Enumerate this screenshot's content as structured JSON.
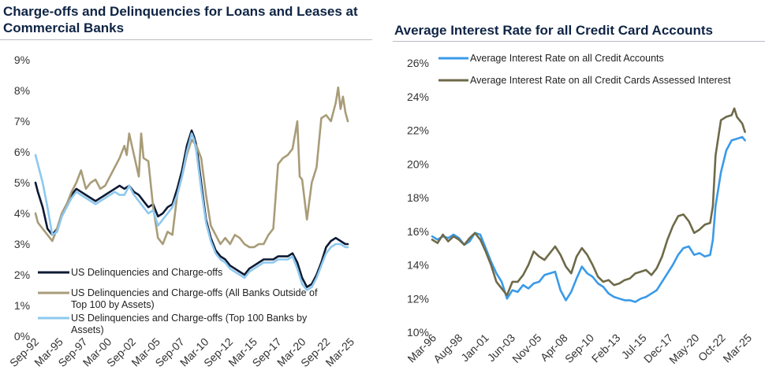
{
  "colors": {
    "title": "#0f2444",
    "black_series": "#0e1a33",
    "olive_series": "#a89c78",
    "lightblue_series": "#8ec8ef",
    "blue_series": "#3a9ae8",
    "darkolive_series": "#6e6a48"
  },
  "chart_data": [
    {
      "type": "line",
      "title_lines": [
        "Charge-offs and Delinquencies for Loans and Leases at",
        "Commercial Banks"
      ],
      "x_ticks": [
        "Sep-92",
        "Mar-95",
        "Sep-97",
        "Mar-00",
        "Sep-02",
        "Mar-05",
        "Sep-07",
        "Mar-10",
        "Sep-12",
        "Mar-15",
        "Sep-17",
        "Mar-20",
        "Sep-22",
        "Mar-25"
      ],
      "x_range": [
        1992.67,
        2025.5
      ],
      "y_ticks": [
        "0%",
        "1%",
        "2%",
        "3%",
        "4%",
        "5%",
        "6%",
        "7%",
        "8%",
        "9%"
      ],
      "ylim": [
        0,
        9
      ],
      "legend_position": "lower-left",
      "series": [
        {
          "name": "US Delinquencies and Charge-offs",
          "legend_lines": [
            "US Delinquencies and Charge-offs"
          ],
          "color": "#0e1a33",
          "x": [
            1992.75,
            1993.0,
            1993.5,
            1994.0,
            1994.5,
            1995.0,
            1995.5,
            1996.0,
            1996.5,
            1997.0,
            1997.5,
            1998.0,
            1998.5,
            1999.0,
            1999.5,
            2000.0,
            2000.5,
            2001.0,
            2001.5,
            2002.0,
            2002.5,
            2003.0,
            2003.5,
            2004.0,
            2004.5,
            2005.0,
            2005.5,
            2006.0,
            2006.5,
            2007.0,
            2007.5,
            2008.0,
            2008.5,
            2009.0,
            2009.25,
            2009.5,
            2010.0,
            2010.5,
            2011.0,
            2011.5,
            2012.0,
            2012.5,
            2013.0,
            2013.5,
            2014.0,
            2014.5,
            2015.0,
            2015.5,
            2016.0,
            2016.5,
            2017.0,
            2017.5,
            2018.0,
            2018.5,
            2019.0,
            2019.5,
            2020.0,
            2020.5,
            2021.0,
            2021.5,
            2022.0,
            2022.5,
            2023.0,
            2023.5,
            2024.0,
            2024.5,
            2025.0,
            2025.25
          ],
          "y": [
            5.0,
            4.7,
            4.2,
            3.5,
            3.3,
            3.5,
            4.0,
            4.3,
            4.6,
            4.8,
            4.7,
            4.6,
            4.5,
            4.4,
            4.5,
            4.6,
            4.7,
            4.8,
            4.9,
            4.8,
            4.9,
            4.7,
            4.6,
            4.4,
            4.2,
            4.3,
            3.9,
            4.0,
            4.2,
            4.3,
            4.8,
            5.4,
            6.2,
            6.7,
            6.5,
            6.2,
            5.0,
            3.8,
            3.2,
            2.8,
            2.6,
            2.5,
            2.3,
            2.2,
            2.1,
            2.0,
            2.2,
            2.3,
            2.4,
            2.5,
            2.5,
            2.5,
            2.6,
            2.6,
            2.6,
            2.7,
            2.4,
            1.9,
            1.6,
            1.7,
            2.0,
            2.4,
            2.9,
            3.1,
            3.2,
            3.1,
            3.0,
            3.0
          ]
        },
        {
          "name": "US Delinquencies and Charge-offs (All Banks Outside of Top 100 by Assets)",
          "legend_lines": [
            "US Delinquencies and Charge-offs (All Banks Outside of",
            "Top 100 by Assets)"
          ],
          "color": "#a89c78",
          "x": [
            1992.75,
            1993.0,
            1993.5,
            1994.0,
            1994.5,
            1995.0,
            1995.5,
            1996.0,
            1996.5,
            1997.0,
            1997.5,
            1998.0,
            1998.5,
            1999.0,
            1999.5,
            2000.0,
            2000.5,
            2001.0,
            2001.5,
            2002.0,
            2002.25,
            2002.5,
            2003.0,
            2003.5,
            2003.75,
            2004.0,
            2004.5,
            2005.0,
            2005.5,
            2006.0,
            2006.5,
            2007.0,
            2007.5,
            2008.0,
            2008.5,
            2009.0,
            2009.5,
            2010.0,
            2010.5,
            2011.0,
            2011.5,
            2012.0,
            2012.5,
            2013.0,
            2013.5,
            2014.0,
            2014.5,
            2015.0,
            2015.5,
            2016.0,
            2016.5,
            2017.0,
            2017.5,
            2018.0,
            2018.5,
            2019.0,
            2019.5,
            2020.0,
            2020.25,
            2020.5,
            2021.0,
            2021.5,
            2022.0,
            2022.5,
            2023.0,
            2023.5,
            2024.0,
            2024.25,
            2024.5,
            2024.75,
            2025.0,
            2025.25
          ],
          "y": [
            4.0,
            3.7,
            3.5,
            3.3,
            3.1,
            3.5,
            4.0,
            4.3,
            4.7,
            5.0,
            5.4,
            4.8,
            5.0,
            5.1,
            4.8,
            4.9,
            5.2,
            5.5,
            5.8,
            6.2,
            5.9,
            6.6,
            5.9,
            5.2,
            6.6,
            5.8,
            5.7,
            4.2,
            3.2,
            3.0,
            3.4,
            3.3,
            4.6,
            5.2,
            5.9,
            6.4,
            6.2,
            5.8,
            4.6,
            3.6,
            3.3,
            3.0,
            3.2,
            3.0,
            3.3,
            3.2,
            3.0,
            2.9,
            2.9,
            3.0,
            3.0,
            3.3,
            3.5,
            5.6,
            5.8,
            5.9,
            6.1,
            7.0,
            5.2,
            5.1,
            3.8,
            5.0,
            5.5,
            7.1,
            7.2,
            7.0,
            7.6,
            8.1,
            7.4,
            7.8,
            7.3,
            7.0
          ]
        },
        {
          "name": "US Delinquencies and Charge-offs (Top 100 Banks by Assets)",
          "legend_lines": [
            "US Delinquencies and Charge-offs (Top 100 Banks by",
            "Assets)"
          ],
          "color": "#8ec8ef",
          "x": [
            1992.75,
            1993.0,
            1993.5,
            1994.0,
            1994.5,
            1995.0,
            1995.5,
            1996.0,
            1996.5,
            1997.0,
            1997.5,
            1998.0,
            1998.5,
            1999.0,
            1999.5,
            2000.0,
            2000.5,
            2001.0,
            2001.5,
            2002.0,
            2002.5,
            2003.0,
            2003.5,
            2004.0,
            2004.5,
            2005.0,
            2005.5,
            2006.0,
            2006.5,
            2007.0,
            2007.5,
            2008.0,
            2008.5,
            2009.0,
            2009.25,
            2009.5,
            2010.0,
            2010.5,
            2011.0,
            2011.5,
            2012.0,
            2012.5,
            2013.0,
            2013.5,
            2014.0,
            2014.5,
            2015.0,
            2015.5,
            2016.0,
            2016.5,
            2017.0,
            2017.5,
            2018.0,
            2018.5,
            2019.0,
            2019.5,
            2020.0,
            2020.5,
            2021.0,
            2021.5,
            2022.0,
            2022.5,
            2023.0,
            2023.5,
            2024.0,
            2024.5,
            2025.0,
            2025.25
          ],
          "y": [
            5.9,
            5.6,
            5.0,
            4.2,
            3.3,
            3.4,
            3.9,
            4.2,
            4.5,
            4.7,
            4.6,
            4.5,
            4.4,
            4.3,
            4.4,
            4.5,
            4.6,
            4.7,
            4.6,
            4.6,
            4.9,
            4.6,
            4.4,
            4.2,
            4.0,
            4.1,
            3.6,
            3.8,
            4.0,
            4.2,
            4.6,
            5.2,
            6.0,
            6.6,
            6.4,
            6.0,
            4.8,
            3.7,
            3.1,
            2.7,
            2.5,
            2.4,
            2.2,
            2.1,
            2.0,
            1.9,
            2.1,
            2.2,
            2.3,
            2.4,
            2.4,
            2.4,
            2.5,
            2.5,
            2.5,
            2.6,
            2.2,
            1.7,
            1.5,
            1.6,
            1.9,
            2.3,
            2.7,
            2.9,
            3.0,
            3.0,
            2.9,
            2.9
          ]
        }
      ]
    },
    {
      "type": "line",
      "title": "Average Interest Rate for all Credit Card Accounts",
      "x_ticks": [
        "Mar-96",
        "Aug-98",
        "Jan-01",
        "Jun-03",
        "Nov-05",
        "Apr-08",
        "Sep-10",
        "Feb-13",
        "Jul-15",
        "Dec-17",
        "May-20",
        "Oct-22",
        "Mar-25"
      ],
      "x_range": [
        1996.0,
        2025.5
      ],
      "y_ticks": [
        "10%",
        "12%",
        "14%",
        "16%",
        "18%",
        "20%",
        "22%",
        "24%",
        "26%"
      ],
      "ylim": [
        10,
        26
      ],
      "legend_position": "top-left",
      "series": [
        {
          "name": "Average Interest Rate on all Credit Accounts",
          "color": "#3a9ae8",
          "x": [
            1996.0,
            1996.5,
            1997.0,
            1997.5,
            1998.0,
            1998.5,
            1999.0,
            1999.5,
            2000.0,
            2000.5,
            2001.0,
            2001.5,
            2002.0,
            2002.5,
            2003.0,
            2003.5,
            2004.0,
            2004.5,
            2005.0,
            2005.5,
            2006.0,
            2006.5,
            2007.0,
            2007.5,
            2008.0,
            2008.5,
            2009.0,
            2009.5,
            2010.0,
            2010.5,
            2011.0,
            2011.5,
            2012.0,
            2012.5,
            2013.0,
            2013.5,
            2014.0,
            2014.5,
            2015.0,
            2015.5,
            2016.0,
            2016.5,
            2017.0,
            2017.5,
            2018.0,
            2018.5,
            2019.0,
            2019.5,
            2020.0,
            2020.5,
            2021.0,
            2021.5,
            2022.0,
            2022.25,
            2022.5,
            2023.0,
            2023.5,
            2024.0,
            2024.5,
            2025.0,
            2025.25
          ],
          "y": [
            15.7,
            15.5,
            15.7,
            15.6,
            15.8,
            15.6,
            15.2,
            15.4,
            15.9,
            15.8,
            15.0,
            14.2,
            13.5,
            13.0,
            12.0,
            12.5,
            12.4,
            12.8,
            12.6,
            12.9,
            13.0,
            13.4,
            13.5,
            13.6,
            12.5,
            11.9,
            12.4,
            13.2,
            13.9,
            13.5,
            13.3,
            12.9,
            12.7,
            12.3,
            12.1,
            12.0,
            11.9,
            11.9,
            11.8,
            12.0,
            12.1,
            12.3,
            12.5,
            13.0,
            13.5,
            14.0,
            14.6,
            15.0,
            15.1,
            14.6,
            14.7,
            14.5,
            14.6,
            15.5,
            17.5,
            19.5,
            20.8,
            21.4,
            21.5,
            21.6,
            21.4
          ]
        },
        {
          "name": "Average Interest Rate on all Credit Cards Assessed Interest",
          "color": "#6e6a48",
          "x": [
            1996.0,
            1996.5,
            1997.0,
            1997.5,
            1998.0,
            1998.5,
            1999.0,
            1999.5,
            2000.0,
            2000.5,
            2001.0,
            2001.5,
            2002.0,
            2002.5,
            2003.0,
            2003.5,
            2004.0,
            2004.5,
            2005.0,
            2005.5,
            2006.0,
            2006.5,
            2007.0,
            2007.5,
            2008.0,
            2008.5,
            2009.0,
            2009.5,
            2010.0,
            2010.5,
            2011.0,
            2011.5,
            2012.0,
            2012.5,
            2013.0,
            2013.5,
            2014.0,
            2014.5,
            2015.0,
            2015.5,
            2016.0,
            2016.5,
            2017.0,
            2017.5,
            2018.0,
            2018.5,
            2019.0,
            2019.5,
            2020.0,
            2020.5,
            2021.0,
            2021.5,
            2022.0,
            2022.25,
            2022.5,
            2023.0,
            2023.5,
            2024.0,
            2024.25,
            2024.5,
            2025.0,
            2025.25
          ],
          "y": [
            15.5,
            15.3,
            15.8,
            15.4,
            15.7,
            15.5,
            15.2,
            15.6,
            15.9,
            15.5,
            14.8,
            14.0,
            13.0,
            12.6,
            12.2,
            13.0,
            13.0,
            13.4,
            14.0,
            14.8,
            14.5,
            14.3,
            14.7,
            15.1,
            14.6,
            13.9,
            13.5,
            14.5,
            15.0,
            14.6,
            14.0,
            13.3,
            13.0,
            13.1,
            12.8,
            12.9,
            13.1,
            13.2,
            13.5,
            13.6,
            13.7,
            13.4,
            13.8,
            14.5,
            15.5,
            16.3,
            16.9,
            17.0,
            16.6,
            15.9,
            16.1,
            16.4,
            16.5,
            17.5,
            20.5,
            22.6,
            22.8,
            22.9,
            23.3,
            22.8,
            22.4,
            21.9
          ]
        }
      ]
    }
  ]
}
